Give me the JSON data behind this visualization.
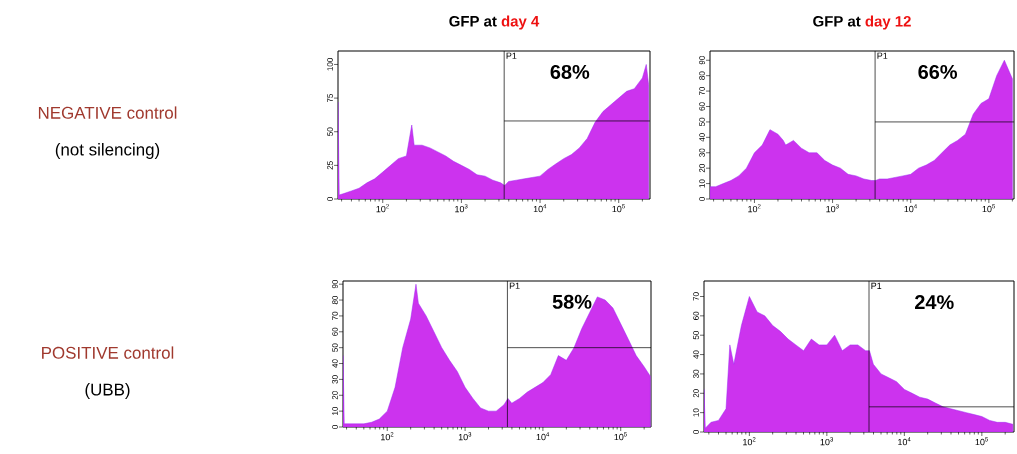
{
  "chart_data": [
    {
      "type": "other",
      "title": "NEGATIVE control",
      "subtitle": "(not silencing)",
      "color": "#a0392e"
    },
    {
      "type": "area",
      "title": "GFP at",
      "subtitle": "day 4",
      "color": "#cc33ee",
      "log": "x",
      "x": [
        27,
        28,
        32,
        40,
        50,
        63,
        79,
        100,
        126,
        158,
        200,
        234,
        251,
        316,
        398,
        501,
        631,
        794,
        1000,
        1260,
        1580,
        2000,
        2510,
        3160,
        3550,
        3980,
        5010,
        6310,
        7940,
        10000,
        12600,
        15800,
        20000,
        25100,
        31600,
        39800,
        50100,
        63100,
        79400,
        100000,
        126000,
        158000,
        200000,
        224000,
        240000
      ],
      "values": [
        72,
        3,
        4,
        6,
        8,
        12,
        15,
        20,
        25,
        30,
        32,
        55,
        40,
        40,
        38,
        35,
        32,
        28,
        25,
        22,
        18,
        17,
        14,
        12,
        10,
        13,
        14,
        15,
        16,
        17,
        22,
        26,
        30,
        33,
        38,
        45,
        57,
        65,
        70,
        75,
        80,
        82,
        90,
        100,
        85
      ],
      "xlim": [
        27,
        250000
      ],
      "ylim": [
        0,
        110
      ],
      "xticks": [
        {
          "value": 100,
          "label": "10$^{2}$"
        },
        {
          "value": 1000,
          "label": "10$^{3}$"
        },
        {
          "value": 10000,
          "label": "10$^{4}$"
        },
        {
          "value": 100000,
          "label": "10$^{5}$"
        }
      ],
      "yticks": [
        0,
        25,
        50,
        75,
        100
      ],
      "ref_lines": [
        {
          "axis": "x",
          "value": 3500
        },
        {
          "axis": "y",
          "value": 58
        }
      ],
      "annotations": [
        "P1",
        "68%"
      ]
    },
    {
      "type": "area",
      "title": "GFP at",
      "subtitle": "day 12",
      "color": "#cc33ee",
      "log": "x",
      "x": [
        27,
        32,
        40,
        50,
        63,
        79,
        100,
        126,
        158,
        200,
        234,
        251,
        316,
        398,
        501,
        631,
        794,
        1000,
        1260,
        1580,
        2000,
        2510,
        3160,
        3550,
        3980,
        5010,
        6310,
        7940,
        10000,
        12600,
        15800,
        20000,
        25100,
        31600,
        39800,
        50100,
        63100,
        79400,
        100000,
        126000,
        158000,
        200000
      ],
      "values": [
        8,
        8,
        10,
        12,
        15,
        20,
        30,
        35,
        45,
        42,
        38,
        35,
        38,
        33,
        30,
        30,
        25,
        22,
        20,
        16,
        15,
        13,
        12,
        12,
        13,
        13,
        14,
        15,
        16,
        20,
        22,
        25,
        30,
        35,
        38,
        42,
        55,
        62,
        65,
        80,
        90,
        78
      ],
      "xlim": [
        27,
        210000
      ],
      "ylim": [
        0,
        96
      ],
      "xticks": [
        {
          "value": 100,
          "label": "10$^{2}$"
        },
        {
          "value": 1000,
          "label": "10$^{3}$"
        },
        {
          "value": 10000,
          "label": "10$^{4}$"
        },
        {
          "value": 100000,
          "label": "10$^{5}$"
        }
      ],
      "yticks": [
        0,
        10,
        20,
        30,
        40,
        50,
        60,
        70,
        80,
        90
      ],
      "ref_lines": [
        {
          "axis": "x",
          "value": 3500
        },
        {
          "axis": "y",
          "value": 50
        }
      ],
      "annotations": [
        "P1",
        "66%"
      ]
    },
    {
      "type": "other",
      "title": "POSITIVE control",
      "subtitle": "(UBB)",
      "color": "#a0392e"
    },
    {
      "type": "area",
      "color": "#cc33ee",
      "log": "x",
      "x": [
        27,
        28,
        32,
        40,
        50,
        63,
        79,
        100,
        126,
        158,
        200,
        234,
        251,
        316,
        398,
        501,
        631,
        794,
        1000,
        1260,
        1580,
        2000,
        2510,
        3160,
        3550,
        3980,
        5010,
        6310,
        7940,
        10000,
        12600,
        15800,
        20000,
        25100,
        31600,
        39800,
        50100,
        63100,
        79400,
        100000,
        126000,
        158000,
        200000,
        240000
      ],
      "values": [
        45,
        2,
        2,
        2,
        2,
        3,
        5,
        10,
        25,
        50,
        68,
        90,
        78,
        70,
        60,
        50,
        42,
        35,
        25,
        18,
        12,
        10,
        10,
        14,
        18,
        15,
        18,
        22,
        25,
        28,
        33,
        45,
        42,
        50,
        62,
        72,
        82,
        80,
        75,
        65,
        55,
        45,
        38,
        32
      ],
      "xlim": [
        27,
        245000
      ],
      "ylim": [
        0,
        92
      ],
      "xticks": [
        {
          "value": 100,
          "label": "10$^{2}$"
        },
        {
          "value": 1000,
          "label": "10$^{3}$"
        },
        {
          "value": 10000,
          "label": "10$^{4}$"
        },
        {
          "value": 100000,
          "label": "10$^{5}$"
        }
      ],
      "yticks": [
        0,
        10,
        20,
        30,
        40,
        50,
        60,
        70,
        80,
        90
      ],
      "ref_lines": [
        {
          "axis": "x",
          "value": 3500
        },
        {
          "axis": "y",
          "value": 50
        }
      ],
      "annotations": [
        "P1",
        "58%"
      ]
    },
    {
      "type": "area",
      "color": "#cc33ee",
      "log": "x",
      "x": [
        26,
        27,
        32,
        40,
        50,
        56,
        63,
        79,
        100,
        126,
        158,
        200,
        251,
        316,
        398,
        501,
        631,
        794,
        1000,
        1260,
        1580,
        2000,
        2510,
        3160,
        3550,
        3980,
        5010,
        6310,
        7940,
        10000,
        12600,
        15800,
        20000,
        25100,
        31600,
        39800,
        50100,
        63100,
        79400,
        100000,
        126000,
        158000,
        200000,
        251000
      ],
      "values": [
        22,
        2,
        5,
        6,
        12,
        45,
        35,
        55,
        70,
        62,
        60,
        55,
        52,
        48,
        45,
        42,
        48,
        45,
        45,
        50,
        42,
        45,
        45,
        42,
        42,
        35,
        30,
        28,
        26,
        22,
        20,
        18,
        17,
        15,
        13,
        12,
        11,
        10,
        9,
        8,
        6,
        5,
        5,
        4
      ],
      "xlim": [
        26,
        260000
      ],
      "ylim": [
        0,
        78
      ],
      "xticks": [
        {
          "value": 100,
          "label": "10$^{2}$"
        },
        {
          "value": 1000,
          "label": "10$^{3}$"
        },
        {
          "value": 10000,
          "label": "10$^{4}$"
        },
        {
          "value": 100000,
          "label": "10$^{5}$"
        }
      ],
      "yticks": [
        0,
        10,
        20,
        30,
        40,
        50,
        60,
        70
      ],
      "ref_lines": [
        {
          "axis": "x",
          "value": 3500
        },
        {
          "axis": "y",
          "value": 13
        }
      ],
      "annotations": [
        "P1",
        "24%"
      ]
    }
  ]
}
